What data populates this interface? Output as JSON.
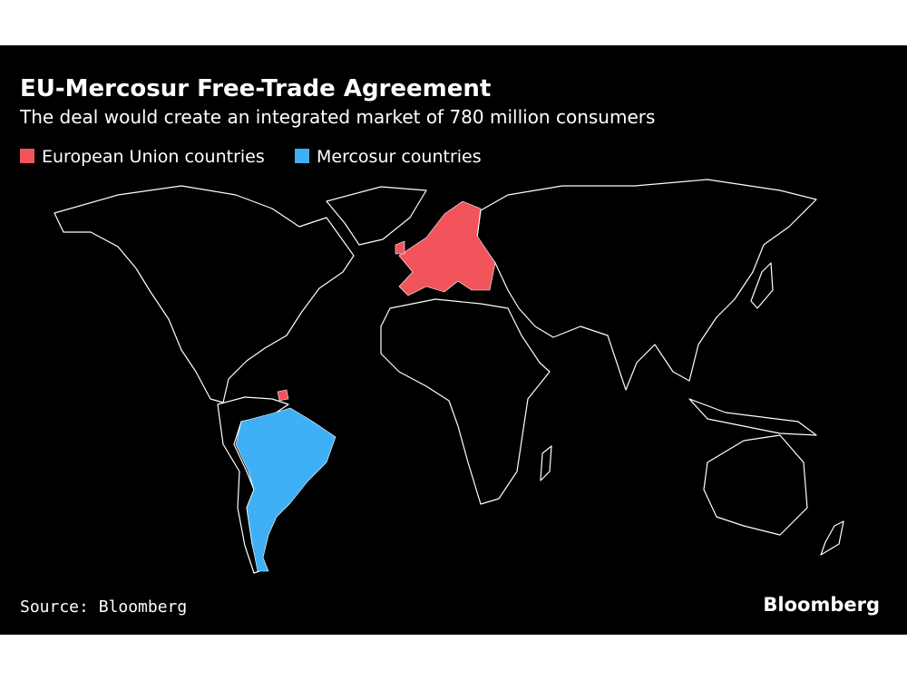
{
  "header": {
    "title": "EU-Mercosur Free-Trade Agreement",
    "subtitle": "The deal would create an integrated market of 780 million consumers"
  },
  "legend": [
    {
      "label": "European Union countries",
      "color": "#f2545b"
    },
    {
      "label": "Mercosur countries",
      "color": "#3fb0f5"
    }
  ],
  "footer": {
    "source": "Source: Bloomberg",
    "logo": "Bloomberg"
  }
}
